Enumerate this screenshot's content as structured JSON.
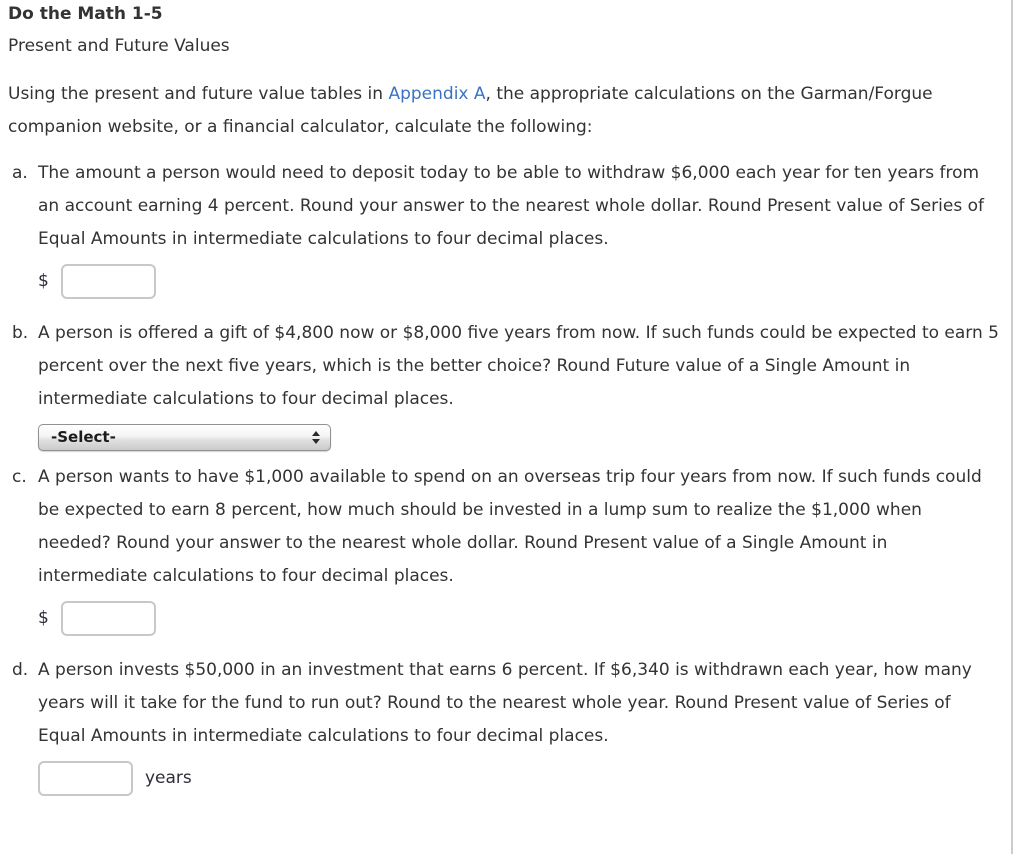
{
  "page": {
    "title": "Do the Math 1-5",
    "subtitle": "Present and Future Values",
    "intro": {
      "pre_link": "Using the present and future value tables in ",
      "link_text": "Appendix A",
      "post_link": ", the appropriate calculations on the Garman/Forgue companion website, or a financial calculator, calculate the following:"
    }
  },
  "questions": [
    {
      "letter": "a.",
      "text": "The amount a person would need to deposit today to be able to withdraw $6,000 each year for ten years from an account earning 4 percent. Round your answer to the nearest whole dollar. Round Present value of Series of Equal Amounts in intermediate calculations to four decimal places.",
      "answer": {
        "type": "currency-input",
        "prefix": "$",
        "value": ""
      }
    },
    {
      "letter": "b.",
      "text": "A person is offered a gift of $4,800 now or $8,000 five years from now. If such funds could be expected to earn 5 percent over the next five years, which is the better choice? Round Future value of a Single Amount in intermediate calculations to four decimal places.",
      "answer": {
        "type": "select",
        "selected": "-Select-"
      }
    },
    {
      "letter": "c.",
      "text": "A person wants to have $1,000 available to spend on an overseas trip four years from now. If such funds could be expected to earn 8 percent, how much should be invested in a lump sum to realize the $1,000 when needed? Round your answer to the nearest whole dollar. Round Present value of a Single Amount in intermediate calculations to four decimal places.",
      "answer": {
        "type": "currency-input",
        "prefix": "$",
        "value": ""
      }
    },
    {
      "letter": "d.",
      "text": "A person invests $50,000 in an investment that earns 6 percent. If $6,340 is withdrawn each year, how many years will it take for the fund to run out? Round to the nearest whole year. Round Present value of Series of Equal Amounts in intermediate calculations to four decimal places.",
      "answer": {
        "type": "input-suffix",
        "suffix": "years",
        "value": ""
      }
    }
  ],
  "colors": {
    "text": "#333333",
    "link": "#3b73c4",
    "panel_border": "#cccccc",
    "input_border": "#c8c8c8",
    "select_border": "#919191"
  }
}
